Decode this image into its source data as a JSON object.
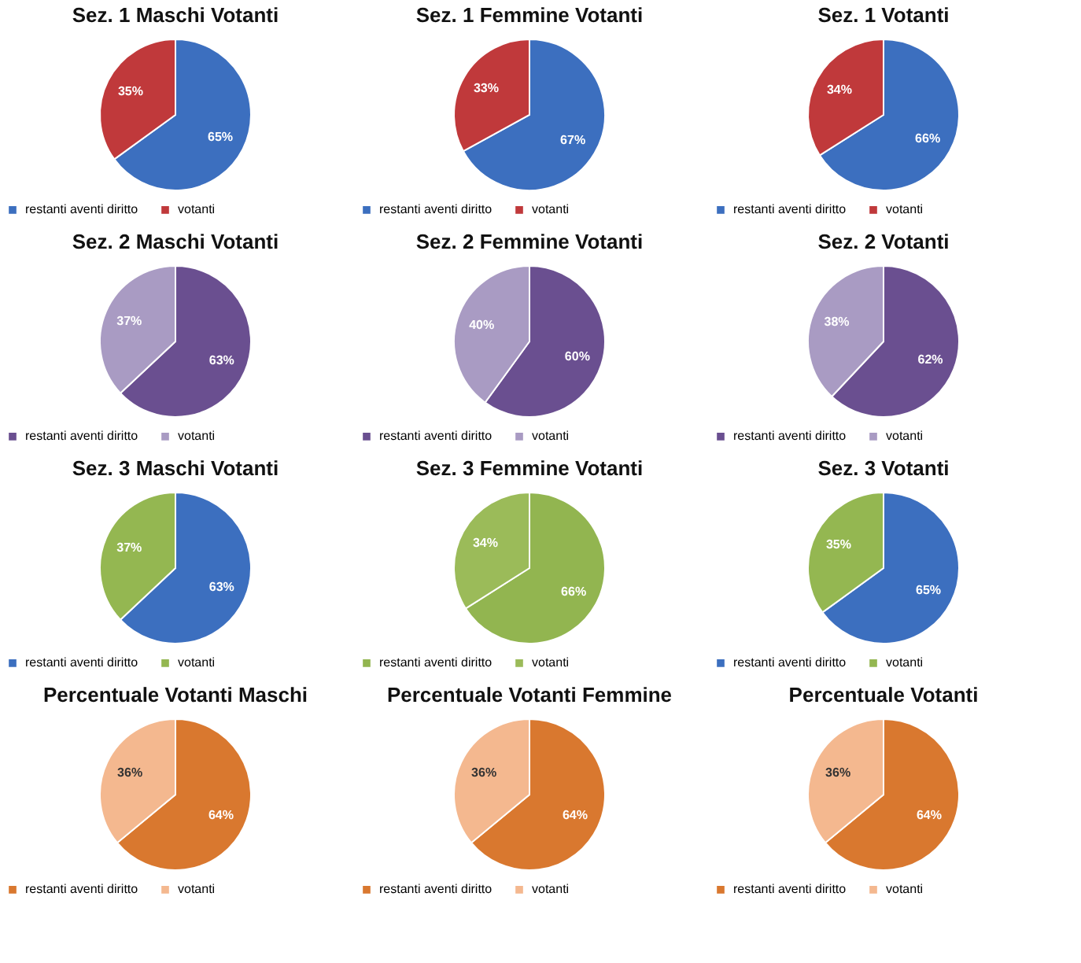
{
  "chart_data": [
    {
      "type": "pie",
      "title": "Sez. 1 Maschi Votanti",
      "categories": [
        "restanti aventi diritto",
        "votanti"
      ],
      "values": [
        65,
        35
      ],
      "colors": [
        "#3c6fbf",
        "#c0393b"
      ],
      "value_labels": [
        "65%",
        "35%"
      ],
      "legend": "bottom"
    },
    {
      "type": "pie",
      "title": "Sez. 1  Femmine Votanti",
      "categories": [
        "restanti aventi diritto",
        "votanti"
      ],
      "values": [
        67,
        33
      ],
      "colors": [
        "#3c6fbf",
        "#c0393b"
      ],
      "value_labels": [
        "67%",
        "33%"
      ],
      "legend": "bottom"
    },
    {
      "type": "pie",
      "title": "Sez. 1  Votanti",
      "categories": [
        "restanti aventi diritto",
        "votanti"
      ],
      "values": [
        66,
        34
      ],
      "colors": [
        "#3c6fbf",
        "#c0393b"
      ],
      "value_labels": [
        "66%",
        "34%"
      ],
      "legend": "bottom"
    },
    {
      "type": "pie",
      "title": "Sez. 2  Maschi Votanti",
      "categories": [
        "restanti aventi diritto",
        "votanti"
      ],
      "values": [
        63,
        37
      ],
      "colors": [
        "#6a4f90",
        "#a99bc3"
      ],
      "value_labels": [
        "63%",
        "37%"
      ],
      "legend": "bottom"
    },
    {
      "type": "pie",
      "title": "Sez. 2 Femmine Votanti",
      "categories": [
        "restanti aventi diritto",
        "votanti"
      ],
      "values": [
        60,
        40
      ],
      "colors": [
        "#6a4f90",
        "#a99bc3"
      ],
      "value_labels": [
        "60%",
        "40%"
      ],
      "legend": "bottom"
    },
    {
      "type": "pie",
      "title": "Sez. 2  Votanti",
      "categories": [
        "restanti aventi diritto",
        "votanti"
      ],
      "values": [
        62,
        38
      ],
      "colors": [
        "#6a4f90",
        "#a99bc3"
      ],
      "value_labels": [
        "62%",
        "38%"
      ],
      "legend": "bottom"
    },
    {
      "type": "pie",
      "title": "Sez. 3 Maschi Votanti",
      "categories": [
        "restanti aventi diritto",
        "votanti"
      ],
      "values": [
        63,
        37
      ],
      "colors": [
        "#3c6fbf",
        "#94b751"
      ],
      "value_labels": [
        "63%",
        "37%"
      ],
      "legend": "bottom"
    },
    {
      "type": "pie",
      "title": "Sez. 3  Femmine Votanti",
      "categories": [
        "restanti aventi diritto",
        "votanti"
      ],
      "values": [
        66,
        34
      ],
      "colors": [
        "#92b550",
        "#9bbb59"
      ],
      "value_labels": [
        "66%",
        "34%"
      ],
      "legend": "bottom"
    },
    {
      "type": "pie",
      "title": "Sez. 3  Votanti",
      "categories": [
        "restanti aventi diritto",
        "votanti"
      ],
      "values": [
        65,
        35
      ],
      "colors": [
        "#3c6fbf",
        "#94b751"
      ],
      "value_labels": [
        "65%",
        "35%"
      ],
      "legend": "bottom"
    },
    {
      "type": "pie",
      "title": "Percentuale  Votanti Maschi",
      "categories": [
        "restanti aventi diritto",
        "votanti"
      ],
      "values": [
        64,
        36
      ],
      "colors": [
        "#d9782f",
        "#f4b88f"
      ],
      "value_labels": [
        "64%",
        "36%"
      ],
      "legend": "bottom"
    },
    {
      "type": "pie",
      "title": "Percentuale Votanti Femmine",
      "categories": [
        "restanti aventi diritto",
        "votanti"
      ],
      "values": [
        64,
        36
      ],
      "colors": [
        "#d9782f",
        "#f4b88f"
      ],
      "value_labels": [
        "64%",
        "36%"
      ],
      "legend": "bottom"
    },
    {
      "type": "pie",
      "title": "Percentuale Votanti",
      "categories": [
        "restanti aventi diritto",
        "votanti"
      ],
      "values": [
        64,
        36
      ],
      "colors": [
        "#d9782f",
        "#f4b88f"
      ],
      "value_labels": [
        "64%",
        "36%"
      ],
      "legend": "bottom"
    }
  ]
}
